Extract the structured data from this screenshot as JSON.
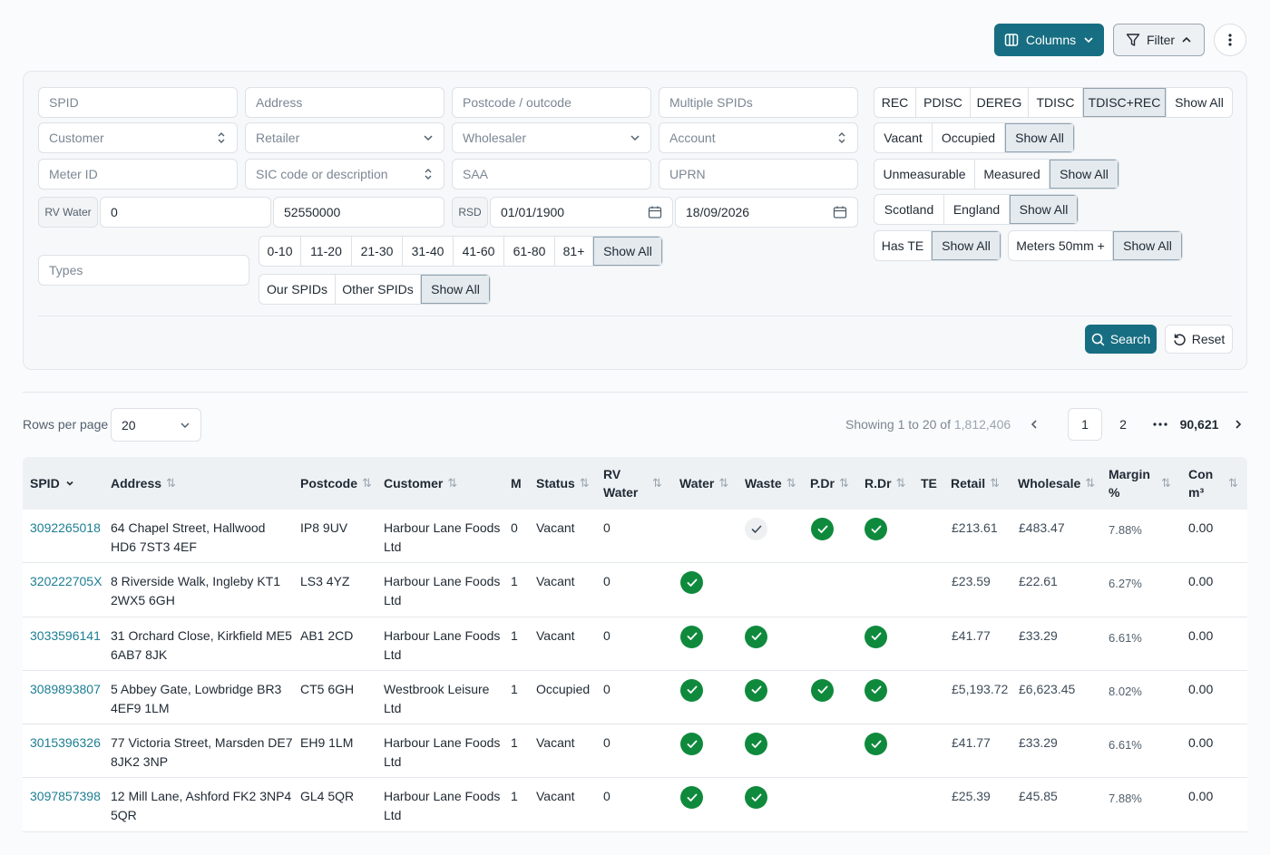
{
  "toolbar": {
    "columns_label": "Columns",
    "filter_label": "Filter"
  },
  "filters": {
    "spid_placeholder": "SPID",
    "address_placeholder": "Address",
    "postcode_placeholder": "Postcode / outcode",
    "multiple_spids_placeholder": "Multiple SPIDs",
    "customer_placeholder": "Customer",
    "retailer_placeholder": "Retailer",
    "wholesaler_placeholder": "Wholesaler",
    "account_placeholder": "Account",
    "meter_id_placeholder": "Meter ID",
    "sic_placeholder": "SIC code or description",
    "saa_placeholder": "SAA",
    "uprn_placeholder": "UPRN",
    "rv_water_tag": "RV Water",
    "rv_water_min": "0",
    "rv_water_max": "52550000",
    "rsd_tag": "RSD",
    "rsd_from": "01/01/1900",
    "rsd_to": "18/09/2026",
    "types_placeholder": "Types",
    "ranges": [
      "0-10",
      "11-20",
      "21-30",
      "31-40",
      "41-60",
      "61-80",
      "81+",
      "Show All"
    ],
    "spid_owner": [
      "Our SPIDs",
      "Other SPIDs",
      "Show All"
    ],
    "status_group": [
      "REC",
      "PDISC",
      "DEREG",
      "TDISC",
      "TDISC+REC",
      "Show All"
    ],
    "occupancy": [
      "Vacant",
      "Occupied",
      "Show All"
    ],
    "measure": [
      "Unmeasurable",
      "Measured",
      "Show All"
    ],
    "region": [
      "Scotland",
      "England",
      "Show All"
    ],
    "te": [
      "Has TE",
      "Show All"
    ],
    "meters": [
      "Meters 50mm +",
      "Show All"
    ],
    "search_label": "Search",
    "reset_label": "Reset"
  },
  "pagination": {
    "rows_per_page_label": "Rows per page",
    "rows_per_page_value": "20",
    "showing_prefix": "Showing 1 to 20 of ",
    "showing_total": "1,812,406",
    "pages": [
      "1",
      "2",
      "90,621"
    ]
  },
  "table": {
    "headers": {
      "spid": "SPID",
      "address": "Address",
      "postcode": "Postcode",
      "customer": "Customer",
      "m": "M",
      "status": "Status",
      "rv_line1": "RV",
      "rv_line2": "Water",
      "water": "Water",
      "waste": "Waste",
      "pdr": "P.Dr",
      "rdr": "R.Dr",
      "te": "TE",
      "retail": "Retail",
      "wholesale": "Wholesale",
      "margin_line1": "Margin",
      "margin_line2": "%",
      "con_line1": "Con",
      "con_line2": "m³"
    },
    "rows": [
      {
        "spid": "3092265018",
        "address_1": "64 Chapel Street, Hallwood",
        "address_2": "HD6 7ST3 4EF",
        "postcode": "IP8 9UV",
        "customer_1": "Harbour Lane Foods",
        "customer_2": "Ltd",
        "m": "0",
        "status": "Vacant",
        "rv": "0",
        "water": "none",
        "waste": "grey",
        "pdr": "check",
        "rdr": "check",
        "retail": "£213.61",
        "wholesale": "£483.47",
        "margin": "7.88%",
        "con": "0.00"
      },
      {
        "spid": "320222705X",
        "address_1": "8 Riverside Walk, Ingleby KT1",
        "address_2": "2WX5 6GH",
        "postcode": "LS3 4YZ",
        "customer_1": "Harbour Lane Foods",
        "customer_2": "Ltd",
        "m": "1",
        "status": "Vacant",
        "rv": "0",
        "water": "check",
        "waste": "none",
        "pdr": "none",
        "rdr": "none",
        "retail": "£23.59",
        "wholesale": "£22.61",
        "margin": "6.27%",
        "con": "0.00"
      },
      {
        "spid": "3033596141",
        "address_1": "31 Orchard Close, Kirkfield ME5",
        "address_2": "6AB7 8JK",
        "postcode": "AB1 2CD",
        "customer_1": "Harbour Lane Foods",
        "customer_2": "Ltd",
        "m": "1",
        "status": "Vacant",
        "rv": "0",
        "water": "check",
        "waste": "check",
        "pdr": "none",
        "rdr": "check",
        "retail": "£41.77",
        "wholesale": "£33.29",
        "margin": "6.61%",
        "con": "0.00"
      },
      {
        "spid": "3089893807",
        "address_1": "5 Abbey Gate, Lowbridge BR3",
        "address_2": "4EF9 1LM",
        "postcode": "CT5 6GH",
        "customer_1": "Westbrook Leisure",
        "customer_2": "Ltd",
        "m": "1",
        "status": "Occupied",
        "rv": "0",
        "water": "check",
        "waste": "check",
        "pdr": "check",
        "rdr": "check",
        "retail": "£5,193.72",
        "wholesale": "£6,623.45",
        "margin": "8.02%",
        "con": "0.00"
      },
      {
        "spid": "3015396326",
        "address_1": "77 Victoria Street, Marsden DE7",
        "address_2": "8JK2 3NP",
        "postcode": "EH9 1LM",
        "customer_1": "Harbour Lane Foods",
        "customer_2": "Ltd",
        "m": "1",
        "status": "Vacant",
        "rv": "0",
        "water": "check",
        "waste": "check",
        "pdr": "none",
        "rdr": "check",
        "retail": "£41.77",
        "wholesale": "£33.29",
        "margin": "6.61%",
        "con": "0.00"
      },
      {
        "spid": "3097857398",
        "address_1": "12 Mill Lane, Ashford FK2 3NP4",
        "address_2": "5QR",
        "postcode": "GL4 5QR",
        "customer_1": "Harbour Lane Foods",
        "customer_2": "Ltd",
        "m": "1",
        "status": "Vacant",
        "rv": "0",
        "water": "check",
        "waste": "check",
        "pdr": "none",
        "rdr": "none",
        "retail": "£25.39",
        "wholesale": "£45.85",
        "margin": "7.88%",
        "con": "0.00"
      }
    ]
  },
  "colors": {
    "accent": "#176e82",
    "link": "#1c7e93",
    "check": "#0f8a3d"
  }
}
